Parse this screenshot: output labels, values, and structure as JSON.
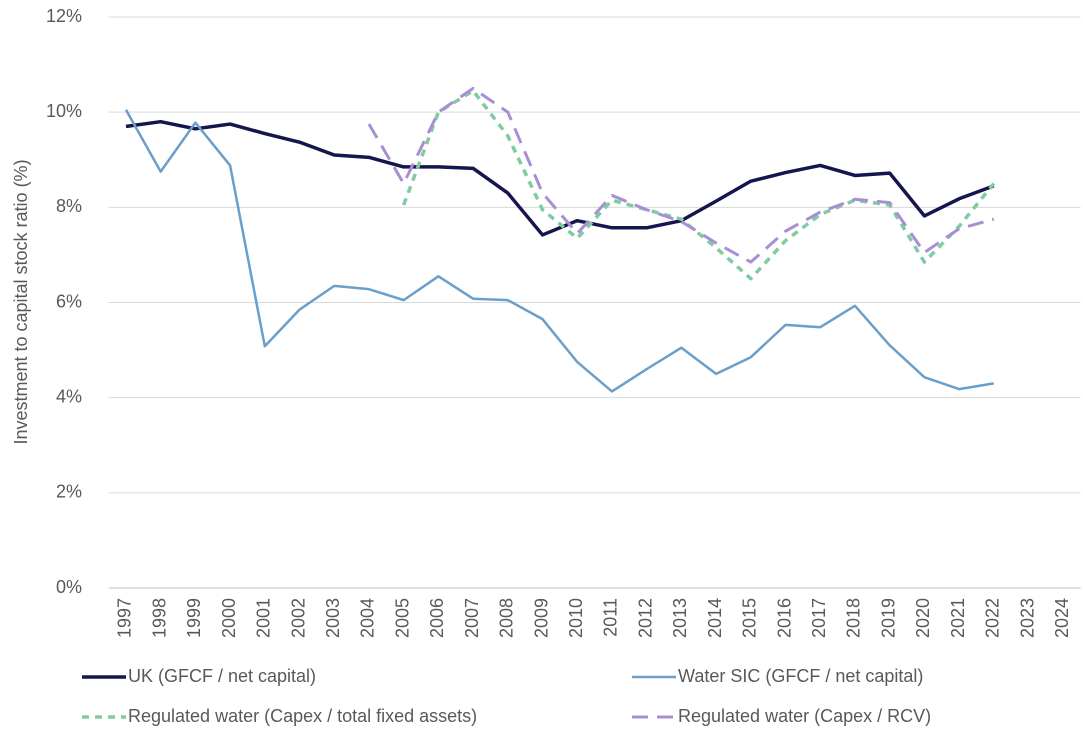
{
  "chart_data": {
    "type": "line",
    "y_label": "Investment to capital stock ratio (%)",
    "categories": [
      "1997",
      "1998",
      "1999",
      "2000",
      "2001",
      "2002",
      "2003",
      "2004",
      "2005",
      "2006",
      "2007",
      "2008",
      "2009",
      "2010",
      "2011",
      "2012",
      "2013",
      "2014",
      "2015",
      "2016",
      "2017",
      "2018",
      "2019",
      "2020",
      "2021",
      "2022",
      "2023",
      "2024"
    ],
    "series": [
      {
        "name": "UK (GFCF / net capital)",
        "color": "#15164d",
        "dash": "solid",
        "width": 3.5,
        "values": [
          9.7,
          9.8,
          9.65,
          9.75,
          9.55,
          9.37,
          9.1,
          9.05,
          8.85,
          8.85,
          8.82,
          8.3,
          7.42,
          7.72,
          7.57,
          7.57,
          7.72,
          8.13,
          8.55,
          8.73,
          8.88,
          8.67,
          8.72,
          7.82,
          8.18,
          8.45,
          null,
          null
        ]
      },
      {
        "name": "Water SIC (GFCF / net capital)",
        "color": "#6a9fca",
        "dash": "solid",
        "width": 2.5,
        "values": [
          10.05,
          8.75,
          9.78,
          8.88,
          5.08,
          5.85,
          6.35,
          6.28,
          6.05,
          6.55,
          6.08,
          6.05,
          5.65,
          4.75,
          4.13,
          4.6,
          5.05,
          4.5,
          4.85,
          5.53,
          5.48,
          5.93,
          5.1,
          4.43,
          4.18,
          4.3,
          null,
          null
        ]
      },
      {
        "name": "Regulated water (Capex / total fixed assets)",
        "color": "#80cba1",
        "dash": "short",
        "width": 3.5,
        "values": [
          null,
          null,
          null,
          null,
          null,
          null,
          null,
          null,
          8.05,
          10.0,
          10.45,
          9.5,
          7.95,
          7.35,
          8.15,
          7.95,
          7.75,
          7.15,
          6.5,
          7.3,
          7.85,
          8.15,
          8.05,
          6.85,
          7.6,
          8.5,
          null,
          null
        ]
      },
      {
        "name": "Regulated water (Capex / RCV)",
        "color": "#a88fd5",
        "dash": "long",
        "width": 3,
        "values": [
          null,
          null,
          null,
          null,
          null,
          null,
          null,
          9.75,
          8.5,
          10.0,
          10.5,
          10.0,
          8.3,
          7.45,
          8.25,
          7.95,
          7.7,
          7.25,
          6.85,
          7.5,
          7.9,
          8.17,
          8.1,
          7.05,
          7.55,
          7.75,
          null,
          null
        ]
      }
    ],
    "ylim": [
      0,
      12
    ],
    "yticks": [
      {
        "value": 0,
        "label": "0%"
      },
      {
        "value": 2,
        "label": "2%"
      },
      {
        "value": 4,
        "label": "4%"
      },
      {
        "value": 6,
        "label": "6%"
      },
      {
        "value": 8,
        "label": "8%"
      },
      {
        "value": 10,
        "label": "10%"
      },
      {
        "value": 12,
        "label": "12%"
      }
    ],
    "grid": true,
    "legend": "bottom"
  }
}
